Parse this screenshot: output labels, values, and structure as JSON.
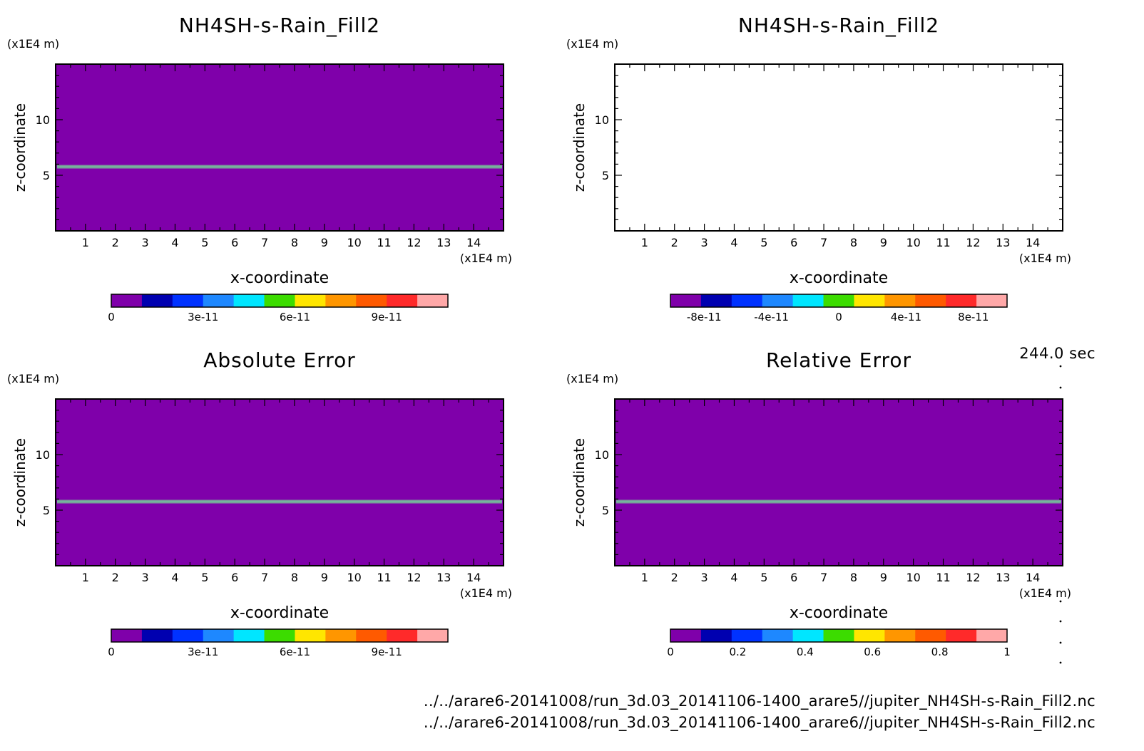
{
  "time_label": "244.0 sec",
  "file_paths": [
    "../../arare6-20141008/run_3d.03_20141106-1400_arare5//jupiter_NH4SH-s-Rain_Fill2.nc",
    "../../arare6-20141008/run_3d.03_20141106-1400_arare6//jupiter_NH4SH-s-Rain_Fill2.nc"
  ],
  "colors": {
    "fill_purple": "#7f00aa",
    "layer_line": "#7a9a9a",
    "colorbar": [
      "#7f00aa",
      "#0000b0",
      "#0032ff",
      "#1e88ff",
      "#00e6ff",
      "#3cdc00",
      "#ffe600",
      "#ff9600",
      "#ff5a00",
      "#ff2a2a",
      "#ffa8a8"
    ]
  },
  "chart_data": [
    {
      "type": "heatmap",
      "title": "NH4SH-s-Rain_Fill2",
      "xlabel": "x-coordinate",
      "ylabel": "z-coordinate",
      "x_unit": "(x1E4 m)",
      "y_unit": "(x1E4 m)",
      "x_ticks": [
        1,
        2,
        3,
        4,
        5,
        6,
        7,
        8,
        9,
        10,
        11,
        12,
        13,
        14
      ],
      "y_ticks": [
        5,
        10
      ],
      "xlim": [
        0,
        15
      ],
      "ylim": [
        0,
        15
      ],
      "layer_z": 5.8,
      "background_value": 0,
      "colorbar_ticks": [
        "0",
        "3e-11",
        "6e-11",
        "9e-11"
      ],
      "colorbar_range": [
        0,
        1.1e-10
      ]
    },
    {
      "type": "heatmap",
      "title": "NH4SH-s-Rain_Fill2",
      "xlabel": "x-coordinate",
      "ylabel": "z-coordinate",
      "x_unit": "(x1E4 m)",
      "y_unit": "(x1E4 m)",
      "x_ticks": [
        1,
        2,
        3,
        4,
        5,
        6,
        7,
        8,
        9,
        10,
        11,
        12,
        13,
        14
      ],
      "y_ticks": [
        5,
        10
      ],
      "xlim": [
        0,
        15
      ],
      "ylim": [
        0,
        15
      ],
      "empty": true,
      "colorbar_ticks": [
        "-8e-11",
        "-4e-11",
        "0",
        "4e-11",
        "8e-11"
      ],
      "colorbar_range": [
        -1e-10,
        1e-10
      ]
    },
    {
      "type": "heatmap",
      "title": "Absolute Error",
      "xlabel": "x-coordinate",
      "ylabel": "z-coordinate",
      "x_unit": "(x1E4 m)",
      "y_unit": "(x1E4 m)",
      "x_ticks": [
        1,
        2,
        3,
        4,
        5,
        6,
        7,
        8,
        9,
        10,
        11,
        12,
        13,
        14
      ],
      "y_ticks": [
        5,
        10
      ],
      "xlim": [
        0,
        15
      ],
      "ylim": [
        0,
        15
      ],
      "layer_z": 5.8,
      "background_value": 0,
      "colorbar_ticks": [
        "0",
        "3e-11",
        "6e-11",
        "9e-11"
      ],
      "colorbar_range": [
        0,
        1.1e-10
      ]
    },
    {
      "type": "heatmap",
      "title": "Relative Error",
      "xlabel": "x-coordinate",
      "ylabel": "z-coordinate",
      "x_unit": "(x1E4 m)",
      "y_unit": "(x1E4 m)",
      "x_ticks": [
        1,
        2,
        3,
        4,
        5,
        6,
        7,
        8,
        9,
        10,
        11,
        12,
        13,
        14
      ],
      "y_ticks": [
        5,
        10
      ],
      "xlim": [
        0,
        15
      ],
      "ylim": [
        0,
        15
      ],
      "layer_z": 5.8,
      "background_value": 0,
      "colorbar_ticks": [
        "0",
        "0.2",
        "0.4",
        "0.6",
        "0.8",
        "1"
      ],
      "colorbar_range": [
        0,
        1
      ]
    }
  ]
}
